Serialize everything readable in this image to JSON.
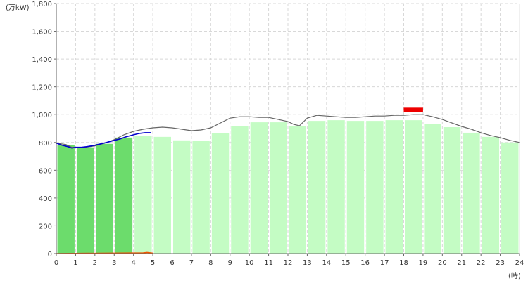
{
  "chart_data": {
    "type": "bar",
    "y_unit_label": "(万kW)",
    "x_unit_label": "(時)",
    "ylim": [
      0,
      1800
    ],
    "y_ticks": [
      "0",
      "200",
      "400",
      "600",
      "800",
      "1,000",
      "1,200",
      "1,400",
      "1,600",
      "1,800"
    ],
    "y_tick_values": [
      0,
      200,
      400,
      600,
      800,
      1000,
      1200,
      1400,
      1600,
      1800
    ],
    "xlim": [
      0,
      24
    ],
    "x_ticks": [
      "0",
      "1",
      "2",
      "3",
      "4",
      "5",
      "6",
      "7",
      "8",
      "9",
      "10",
      "11",
      "12",
      "13",
      "14",
      "15",
      "16",
      "17",
      "18",
      "19",
      "20",
      "21",
      "22",
      "23",
      "24"
    ],
    "x_tick_values": [
      0,
      1,
      2,
      3,
      4,
      5,
      6,
      7,
      8,
      9,
      10,
      11,
      12,
      13,
      14,
      15,
      16,
      17,
      18,
      19,
      20,
      21,
      22,
      23,
      24
    ],
    "grid": true,
    "bars": {
      "hours": [
        0,
        1,
        2,
        3,
        4,
        5,
        6,
        7,
        8,
        9,
        10,
        11,
        12,
        13,
        14,
        15,
        16,
        17,
        18,
        19,
        20,
        21,
        22,
        23
      ],
      "values": [
        780,
        765,
        790,
        835,
        845,
        840,
        815,
        810,
        865,
        920,
        945,
        945,
        920,
        955,
        960,
        955,
        955,
        960,
        960,
        935,
        910,
        870,
        840,
        800
      ],
      "actual_count": 4,
      "actual_color": "#6cdc6c",
      "forecast_color": "#c4fcc4"
    },
    "forecast_line": {
      "color": "#666666",
      "x": [
        0,
        0.5,
        0.8,
        1,
        1.5,
        2,
        2.5,
        3,
        3.5,
        4,
        4.5,
        5,
        5.5,
        6,
        6.5,
        7,
        7.5,
        8,
        8.5,
        9,
        9.5,
        10,
        10.5,
        11,
        11.5,
        12,
        12.3,
        12.6,
        13,
        13.5,
        14,
        14.5,
        15,
        15.5,
        16,
        16.5,
        17,
        17.5,
        18,
        18.5,
        19,
        19.5,
        20,
        20.5,
        21,
        21.5,
        22,
        22.5,
        23,
        23.5,
        24
      ],
      "y": [
        795,
        785,
        765,
        765,
        765,
        775,
        795,
        820,
        855,
        880,
        895,
        905,
        910,
        905,
        895,
        885,
        890,
        905,
        940,
        975,
        985,
        985,
        980,
        980,
        965,
        950,
        930,
        920,
        975,
        995,
        990,
        985,
        980,
        980,
        985,
        990,
        990,
        995,
        995,
        1000,
        1000,
        985,
        965,
        940,
        915,
        895,
        870,
        850,
        835,
        815,
        800
      ]
    },
    "actual_line": {
      "color": "#0000cc",
      "x": [
        0,
        0.3,
        0.6,
        0.8,
        1,
        1.3,
        1.6,
        2,
        2.3,
        2.6,
        3,
        3.3,
        3.6,
        4,
        4.3,
        4.6,
        4.9
      ],
      "y": [
        795,
        780,
        770,
        760,
        765,
        765,
        770,
        780,
        790,
        800,
        815,
        825,
        840,
        855,
        865,
        870,
        870
      ]
    },
    "peak_marker": {
      "color": "#ee0000",
      "x_start": 18,
      "x_end": 19,
      "y_low": 1020,
      "y_high": 1050
    },
    "solar_line": {
      "color": "#ee5500",
      "x": [
        0,
        4.5,
        4.7,
        5
      ],
      "y": [
        0,
        5,
        8,
        3
      ]
    }
  }
}
